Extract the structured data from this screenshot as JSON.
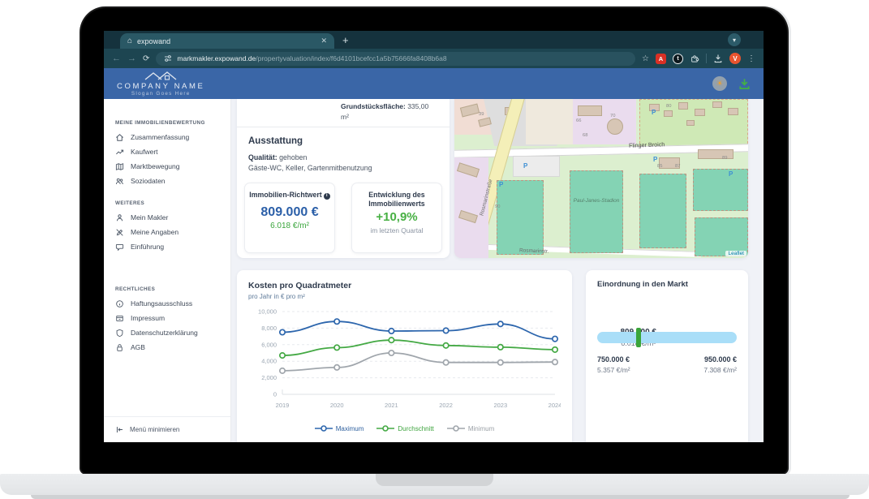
{
  "browser": {
    "tab": {
      "title": "expowand"
    },
    "url": {
      "domain": "markmakler.expowand.de",
      "path": "/propertyvaluation/index/f6d4101bcefcc1a5b75666fa8408b6a8"
    },
    "pdf_badge": "A",
    "ext_badge": "t",
    "avatar_initial": "V"
  },
  "header": {
    "company": "COMPANY NAME",
    "slogan": "Slogan Goes Here"
  },
  "sidebar": {
    "sections": [
      {
        "label": "MEINE IMMOBILIENBEWERTUNG",
        "items": [
          {
            "label": "Zusammenfassung",
            "icon": "home-icon"
          },
          {
            "label": "Kaufwert",
            "icon": "trending-up-icon"
          },
          {
            "label": "Marktbewegung",
            "icon": "map-icon"
          },
          {
            "label": "Soziodaten",
            "icon": "people-icon"
          }
        ]
      },
      {
        "label": "WEITERES",
        "items": [
          {
            "label": "Mein Makler",
            "icon": "person-icon"
          },
          {
            "label": "Meine Angaben",
            "icon": "edit-icon"
          },
          {
            "label": "Einführung",
            "icon": "chat-icon"
          }
        ]
      },
      {
        "label": "RECHTLICHES",
        "items": [
          {
            "label": "Haftungsausschluss",
            "icon": "info-icon"
          },
          {
            "label": "Impressum",
            "icon": "archive-icon"
          },
          {
            "label": "Datenschutzerklärung",
            "icon": "shield-icon"
          },
          {
            "label": "AGB",
            "icon": "lock-icon"
          }
        ]
      }
    ],
    "collapse_label": "Menü minimieren"
  },
  "property": {
    "area_label": "Grundstücksfläche:",
    "area_value": "335,00 m²",
    "features_title": "Ausstattung",
    "quality_label": "Qualität:",
    "quality_value": "gehoben",
    "features": "Gäste-WC, Keller, Gartenmitbenutzung"
  },
  "stats": {
    "richtwert": {
      "title": "Immobilien-Richtwert",
      "value": "809.000 €",
      "per_sqm": "6.018 €/m²"
    },
    "entwicklung": {
      "title": "Entwicklung des Immobilienwerts",
      "value": "+10,9%",
      "caption": "im letzten Quartal"
    }
  },
  "map": {
    "street_main": "Flinger Broich",
    "street_left": "Rosmarinstraße",
    "street_bottom": "Rosmarinstr.",
    "stadium": "Paul-Janes-Stadion",
    "parking_label": "P",
    "house_numbers": [
      "39",
      "66",
      "70",
      "68",
      "80",
      "85",
      "87",
      "89",
      "90"
    ],
    "attribution": "Leaflet"
  },
  "chart_data": {
    "type": "line",
    "title": "Kosten pro Quadratmeter",
    "subtitle": "pro Jahr in € pro m²",
    "categories": [
      "2019",
      "2020",
      "2021",
      "2022",
      "2023",
      "2024"
    ],
    "ymax": 10000,
    "yticks": [
      {
        "v": 0,
        "label": "0"
      },
      {
        "v": 2000,
        "label": "2,000"
      },
      {
        "v": 4000,
        "label": "4,000"
      },
      {
        "v": 6000,
        "label": "6,000"
      },
      {
        "v": 8000,
        "label": "8,000"
      },
      {
        "v": 10000,
        "label": "10,000"
      }
    ],
    "grid": "dashed-horizontal",
    "legend_position": "bottom",
    "series": [
      {
        "name": "Maximum",
        "color": "#2d66ad",
        "label_color": "#2d5f9e",
        "values": [
          7500,
          8800,
          7650,
          7700,
          8500,
          6700
        ]
      },
      {
        "name": "Durchschnitt",
        "color": "#44a944",
        "label_color": "#3ea43e",
        "values": [
          4700,
          5650,
          6550,
          5900,
          5700,
          5400
        ]
      },
      {
        "name": "Minimum",
        "color": "#a0a6ac",
        "label_color": "#9aa0a6",
        "values": [
          2850,
          3250,
          5000,
          3850,
          3850,
          3900
        ]
      }
    ]
  },
  "market": {
    "title": "Einordnung in den Markt",
    "current_value": "809.000 €",
    "current_per_sqm": "6.018 €/m²",
    "min_value": "750.000 €",
    "min_per_sqm": "5.357 €/m²",
    "max_value": "950.000 €",
    "max_per_sqm": "7.308 €/m²",
    "marker_percent": 29.5,
    "bar_color": "#a9def8",
    "marker_color": "#3aa53a"
  }
}
